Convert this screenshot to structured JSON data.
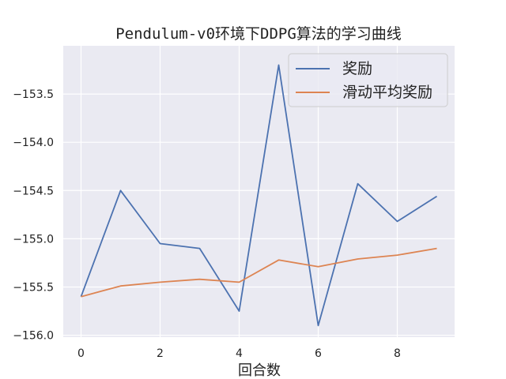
{
  "chart_data": {
    "type": "line",
    "title": "Pendulum-v0环境下DDPG算法的学习曲线",
    "xlabel": "回合数",
    "ylabel": "",
    "x": [
      0,
      1,
      2,
      3,
      4,
      5,
      6,
      7,
      8,
      9
    ],
    "xlim": [
      -0.45,
      9.45
    ],
    "ylim": [
      -156.02,
      -153.0
    ],
    "xticks": [
      0,
      2,
      4,
      6,
      8
    ],
    "xtick_labels": [
      "0",
      "2",
      "4",
      "6",
      "8"
    ],
    "yticks": [
      -153.5,
      -154.0,
      -154.5,
      -155.0,
      -155.5,
      -156.0
    ],
    "ytick_labels": [
      "−153.5",
      "−154.0",
      "−154.5",
      "−155.0",
      "−155.5",
      "−156.0"
    ],
    "grid": true,
    "legend_position": "top-right",
    "series": [
      {
        "name": "奖励",
        "color": "#4c72b0",
        "values": [
          -155.6,
          -154.5,
          -155.05,
          -155.1,
          -155.75,
          -153.2,
          -155.9,
          -154.43,
          -154.82,
          -154.56
        ]
      },
      {
        "name": "滑动平均奖励",
        "color": "#dd8452",
        "values": [
          -155.6,
          -155.49,
          -155.45,
          -155.42,
          -155.45,
          -155.22,
          -155.29,
          -155.21,
          -155.17,
          -155.1
        ]
      }
    ]
  },
  "colors": {
    "plot_background": "#eaeaf2",
    "grid": "#ffffff"
  }
}
